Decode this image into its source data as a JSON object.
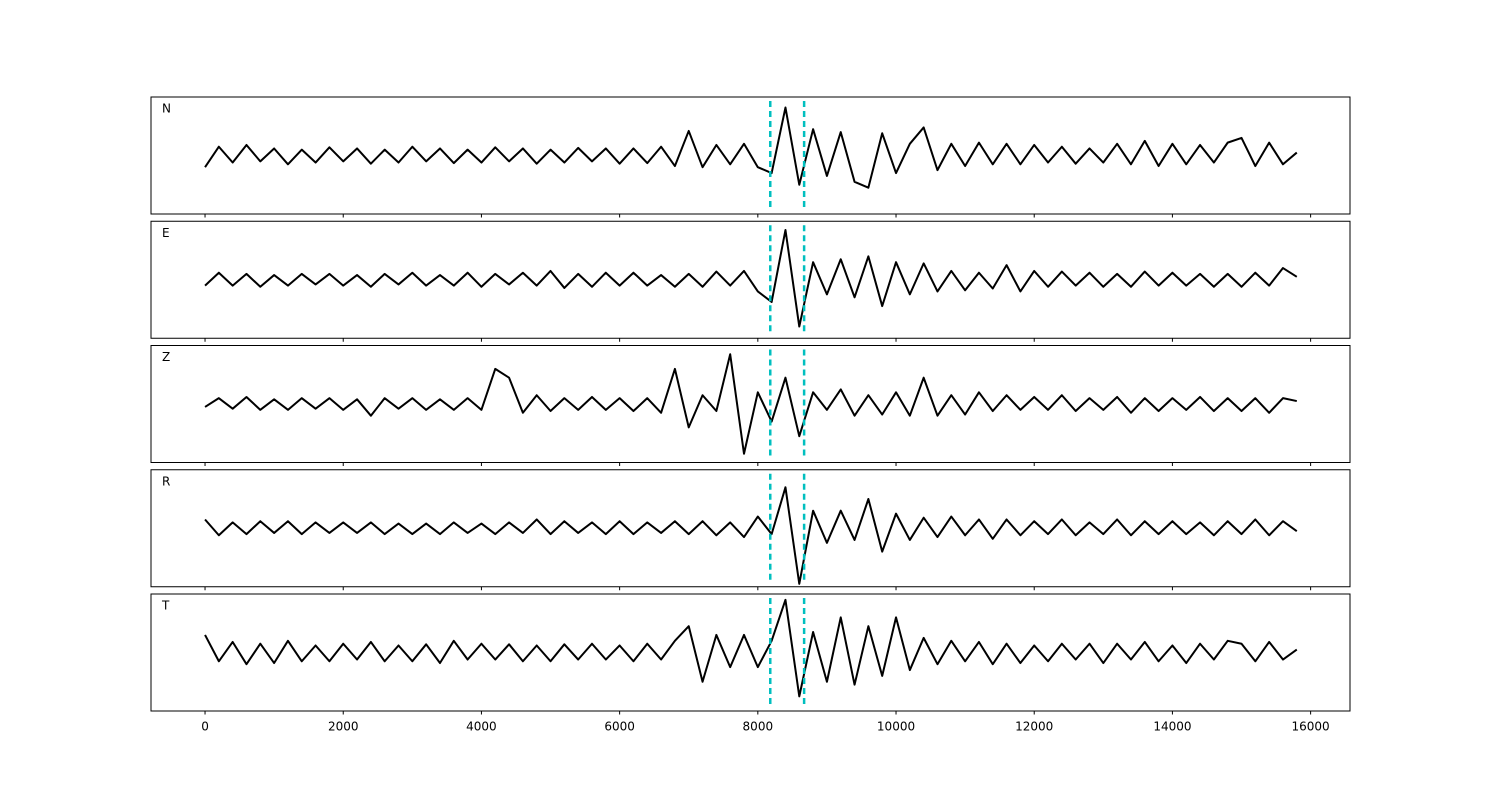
{
  "chart_data": [
    {
      "type": "line",
      "title": "N",
      "color": "#000000",
      "vline_color": "#00bfbf",
      "vlines": [
        8180,
        8670
      ],
      "xlim": [
        -782,
        16570
      ],
      "ylim": [
        -1,
        1
      ],
      "xticks": [
        0,
        2000,
        4000,
        6000,
        8000,
        10000,
        12000,
        14000,
        16000
      ],
      "x": [
        0,
        200,
        400,
        600,
        800,
        1000,
        1200,
        1400,
        1600,
        1800,
        2000,
        2200,
        2400,
        2600,
        2800,
        3000,
        3200,
        3400,
        3600,
        3800,
        4000,
        4200,
        4400,
        4600,
        4800,
        5000,
        5200,
        5400,
        5600,
        5800,
        6000,
        6200,
        6400,
        6600,
        6800,
        7000,
        7200,
        7400,
        7600,
        7800,
        8000,
        8200,
        8400,
        8600,
        8800,
        9000,
        9200,
        9400,
        9600,
        9800,
        10000,
        10200,
        10400,
        10600,
        10800,
        11000,
        11200,
        11400,
        11600,
        11800,
        12000,
        12200,
        12400,
        12600,
        12800,
        13000,
        13200,
        13400,
        13600,
        13800,
        14000,
        14200,
        14400,
        14600,
        14800,
        15000,
        15200,
        15400,
        15600,
        15800
      ],
      "values": [
        -0.2,
        0.15,
        -0.12,
        0.18,
        -0.1,
        0.12,
        -0.15,
        0.1,
        -0.12,
        0.14,
        -0.1,
        0.12,
        -0.14,
        0.1,
        -0.12,
        0.15,
        -0.1,
        0.12,
        -0.13,
        0.1,
        -0.12,
        0.14,
        -0.1,
        0.12,
        -0.14,
        0.1,
        -0.12,
        0.13,
        -0.1,
        0.12,
        -0.14,
        0.12,
        -0.13,
        0.15,
        -0.18,
        0.42,
        -0.2,
        0.18,
        -0.15,
        0.2,
        -0.2,
        -0.3,
        0.82,
        -0.5,
        0.45,
        -0.35,
        0.4,
        -0.45,
        -0.55,
        0.38,
        -0.3,
        0.2,
        0.48,
        -0.25,
        0.2,
        -0.18,
        0.22,
        -0.15,
        0.2,
        -0.15,
        0.18,
        -0.12,
        0.15,
        -0.14,
        0.12,
        -0.12,
        0.2,
        -0.15,
        0.25,
        -0.18,
        0.2,
        -0.15,
        0.18,
        -0.12,
        0.22,
        0.3,
        -0.18,
        0.22,
        -0.15,
        0.05
      ]
    },
    {
      "type": "line",
      "title": "E",
      "color": "#000000",
      "vline_color": "#00bfbf",
      "vlines": [
        8180,
        8670
      ],
      "xlim": [
        -782,
        16570
      ],
      "ylim": [
        -1,
        1
      ],
      "xticks": [
        0,
        2000,
        4000,
        6000,
        8000,
        10000,
        12000,
        14000,
        16000
      ],
      "x": [
        0,
        200,
        400,
        600,
        800,
        1000,
        1200,
        1400,
        1600,
        1800,
        2000,
        2200,
        2400,
        2600,
        2800,
        3000,
        3200,
        3400,
        3600,
        3800,
        4000,
        4200,
        4400,
        4600,
        4800,
        5000,
        5200,
        5400,
        5600,
        5800,
        6000,
        6200,
        6400,
        6600,
        6800,
        7000,
        7200,
        7400,
        7600,
        7800,
        8000,
        8200,
        8400,
        8600,
        8800,
        9000,
        9200,
        9400,
        9600,
        9800,
        10000,
        10200,
        10400,
        10600,
        10800,
        11000,
        11200,
        11400,
        11600,
        11800,
        12000,
        12200,
        12400,
        12600,
        12800,
        13000,
        13200,
        13400,
        13600,
        13800,
        14000,
        14200,
        14400,
        14600,
        14800,
        15000,
        15200,
        15400,
        15600,
        15800
      ],
      "values": [
        -0.1,
        0.12,
        -0.1,
        0.1,
        -0.12,
        0.08,
        -0.1,
        0.1,
        -0.08,
        0.1,
        -0.1,
        0.08,
        -0.12,
        0.1,
        -0.08,
        0.12,
        -0.1,
        0.08,
        -0.1,
        0.12,
        -0.12,
        0.1,
        -0.08,
        0.12,
        -0.1,
        0.15,
        -0.14,
        0.1,
        -0.12,
        0.12,
        -0.1,
        0.12,
        -0.1,
        0.08,
        -0.12,
        0.1,
        -0.12,
        0.14,
        -0.1,
        0.15,
        -0.2,
        -0.38,
        0.85,
        -0.8,
        0.3,
        -0.25,
        0.35,
        -0.3,
        0.4,
        -0.45,
        0.3,
        -0.25,
        0.28,
        -0.2,
        0.15,
        -0.18,
        0.12,
        -0.15,
        0.25,
        -0.2,
        0.15,
        -0.12,
        0.14,
        -0.1,
        0.12,
        -0.12,
        0.1,
        -0.12,
        0.14,
        -0.1,
        0.12,
        -0.1,
        0.1,
        -0.12,
        0.1,
        -0.12,
        0.12,
        -0.1,
        0.2,
        0.05
      ]
    },
    {
      "type": "line",
      "title": "Z",
      "color": "#000000",
      "vline_color": "#00bfbf",
      "vlines": [
        8180,
        8670
      ],
      "xlim": [
        -782,
        16570
      ],
      "ylim": [
        -1,
        1
      ],
      "xticks": [
        0,
        2000,
        4000,
        6000,
        8000,
        10000,
        12000,
        14000,
        16000
      ],
      "x": [
        0,
        200,
        400,
        600,
        800,
        1000,
        1200,
        1400,
        1600,
        1800,
        2000,
        2200,
        2400,
        2600,
        2800,
        3000,
        3200,
        3400,
        3600,
        3800,
        4000,
        4200,
        4400,
        4600,
        4800,
        5000,
        5200,
        5400,
        5600,
        5800,
        6000,
        6200,
        6400,
        6600,
        6800,
        7000,
        7200,
        7400,
        7600,
        7800,
        8000,
        8200,
        8400,
        8600,
        8800,
        9000,
        9200,
        9400,
        9600,
        9800,
        10000,
        10200,
        10400,
        10600,
        10800,
        11000,
        11200,
        11400,
        11600,
        11800,
        12000,
        12200,
        12400,
        12600,
        12800,
        13000,
        13200,
        13400,
        13600,
        13800,
        14000,
        14200,
        14400,
        14600,
        14800,
        15000,
        15200,
        15400,
        15600,
        15800
      ],
      "values": [
        -0.05,
        0.1,
        -0.08,
        0.12,
        -0.1,
        0.08,
        -0.1,
        0.1,
        -0.08,
        0.1,
        -0.1,
        0.08,
        -0.2,
        0.1,
        -0.08,
        0.1,
        -0.1,
        0.08,
        -0.1,
        0.1,
        -0.1,
        0.6,
        0.45,
        -0.15,
        0.15,
        -0.12,
        0.1,
        -0.1,
        0.12,
        -0.1,
        0.1,
        -0.12,
        0.1,
        -0.15,
        0.6,
        -0.4,
        0.15,
        -0.12,
        0.85,
        -0.85,
        0.2,
        -0.3,
        0.45,
        -0.55,
        0.2,
        -0.1,
        0.25,
        -0.2,
        0.15,
        -0.18,
        0.2,
        -0.2,
        0.45,
        -0.2,
        0.15,
        -0.18,
        0.2,
        -0.12,
        0.15,
        -0.1,
        0.12,
        -0.1,
        0.15,
        -0.12,
        0.1,
        -0.1,
        0.12,
        -0.15,
        0.1,
        -0.12,
        0.1,
        -0.1,
        0.12,
        -0.12,
        0.1,
        -0.12,
        0.1,
        -0.15,
        0.1,
        0.05
      ]
    },
    {
      "type": "line",
      "title": "R",
      "color": "#000000",
      "vline_color": "#00bfbf",
      "vlines": [
        8180,
        8670
      ],
      "xlim": [
        -782,
        16570
      ],
      "ylim": [
        -1,
        1
      ],
      "xticks": [
        0,
        2000,
        4000,
        6000,
        8000,
        10000,
        12000,
        14000,
        16000
      ],
      "x": [
        0,
        200,
        400,
        600,
        800,
        1000,
        1200,
        1400,
        1600,
        1800,
        2000,
        2200,
        2400,
        2600,
        2800,
        3000,
        3200,
        3400,
        3600,
        3800,
        4000,
        4200,
        4400,
        4600,
        4800,
        5000,
        5200,
        5400,
        5600,
        5800,
        6000,
        6200,
        6400,
        6600,
        6800,
        7000,
        7200,
        7400,
        7600,
        7800,
        8000,
        8200,
        8400,
        8600,
        8800,
        9000,
        9200,
        9400,
        9600,
        9800,
        10000,
        10200,
        10400,
        10600,
        10800,
        11000,
        11200,
        11400,
        11600,
        11800,
        12000,
        12200,
        12400,
        12600,
        12800,
        13000,
        13200,
        13400,
        13600,
        13800,
        14000,
        14200,
        14400,
        14600,
        14800,
        15000,
        15200,
        15400,
        15600,
        15800
      ],
      "values": [
        0.15,
        -0.12,
        0.1,
        -0.1,
        0.12,
        -0.08,
        0.12,
        -0.1,
        0.1,
        -0.08,
        0.1,
        -0.08,
        0.1,
        -0.1,
        0.08,
        -0.1,
        0.08,
        -0.1,
        0.1,
        -0.08,
        0.08,
        -0.1,
        0.1,
        -0.08,
        0.15,
        -0.1,
        0.12,
        -0.08,
        0.1,
        -0.1,
        0.12,
        -0.1,
        0.1,
        -0.08,
        0.12,
        -0.1,
        0.12,
        -0.12,
        0.1,
        -0.15,
        0.2,
        -0.1,
        0.7,
        -0.95,
        0.3,
        -0.25,
        0.3,
        -0.2,
        0.5,
        -0.4,
        0.25,
        -0.2,
        0.18,
        -0.15,
        0.2,
        -0.12,
        0.15,
        -0.18,
        0.15,
        -0.12,
        0.12,
        -0.1,
        0.15,
        -0.12,
        0.1,
        -0.1,
        0.15,
        -0.12,
        0.12,
        -0.1,
        0.12,
        -0.1,
        0.1,
        -0.12,
        0.12,
        -0.1,
        0.15,
        -0.12,
        0.12,
        -0.05
      ]
    },
    {
      "type": "line",
      "title": "T",
      "color": "#000000",
      "vline_color": "#00bfbf",
      "vlines": [
        8180,
        8670
      ],
      "xlim": [
        -782,
        16570
      ],
      "ylim": [
        -1,
        1
      ],
      "xticks": [
        0,
        2000,
        4000,
        6000,
        8000,
        10000,
        12000,
        14000,
        16000
      ],
      "x": [
        0,
        200,
        400,
        600,
        800,
        1000,
        1200,
        1400,
        1600,
        1800,
        2000,
        2200,
        2400,
        2600,
        2800,
        3000,
        3200,
        3400,
        3600,
        3800,
        4000,
        4200,
        4400,
        4600,
        4800,
        5000,
        5200,
        5400,
        5600,
        5800,
        6000,
        6200,
        6400,
        6600,
        6800,
        7000,
        7200,
        7400,
        7600,
        7800,
        8000,
        8200,
        8400,
        8600,
        8800,
        9000,
        9200,
        9400,
        9600,
        9800,
        10000,
        10200,
        10400,
        10600,
        10800,
        11000,
        11200,
        11400,
        11600,
        11800,
        12000,
        12200,
        12400,
        12600,
        12800,
        13000,
        13200,
        13400,
        13600,
        13800,
        14000,
        14200,
        14400,
        14600,
        14800,
        15000,
        15200,
        15400,
        15600,
        15800
      ],
      "values": [
        0.3,
        -0.15,
        0.18,
        -0.2,
        0.15,
        -0.18,
        0.2,
        -0.15,
        0.12,
        -0.15,
        0.15,
        -0.12,
        0.18,
        -0.15,
        0.12,
        -0.15,
        0.14,
        -0.18,
        0.2,
        -0.12,
        0.15,
        -0.12,
        0.14,
        -0.15,
        0.12,
        -0.15,
        0.14,
        -0.12,
        0.15,
        -0.12,
        0.12,
        -0.15,
        0.15,
        -0.12,
        0.2,
        0.45,
        -0.5,
        0.3,
        -0.25,
        0.3,
        -0.25,
        0.2,
        0.9,
        -0.75,
        0.35,
        -0.5,
        0.6,
        -0.55,
        0.45,
        -0.4,
        0.6,
        -0.3,
        0.25,
        -0.2,
        0.2,
        -0.15,
        0.18,
        -0.2,
        0.15,
        -0.18,
        0.12,
        -0.15,
        0.15,
        -0.12,
        0.15,
        -0.18,
        0.15,
        -0.12,
        0.18,
        -0.15,
        0.12,
        -0.18,
        0.15,
        -0.12,
        0.2,
        0.15,
        -0.15,
        0.18,
        -0.12,
        0.05
      ]
    }
  ]
}
